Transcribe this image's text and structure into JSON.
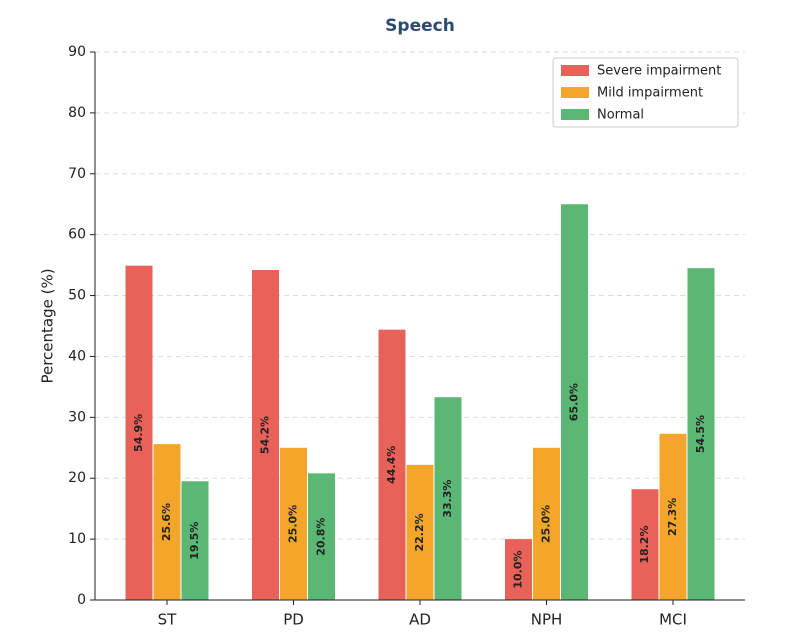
{
  "chart_data": {
    "type": "bar",
    "title": "Speech",
    "y_label": "Percentage (%)",
    "categories": [
      "ST",
      "PD",
      "AD",
      "NPH",
      "MCI"
    ],
    "series": [
      {
        "name": "Severe impairment",
        "color": "#e8625a",
        "values": [
          54.9,
          54.2,
          44.4,
          10.0,
          18.2
        ],
        "value_labels": [
          "54.9%",
          "54.2%",
          "44.4%",
          "10.0%",
          "18.2%"
        ]
      },
      {
        "name": "Mild impairment",
        "color": "#f4a62a",
        "values": [
          25.6,
          25.0,
          22.2,
          25.0,
          27.3
        ],
        "value_labels": [
          "25.6%",
          "25.0%",
          "22.2%",
          "25.0%",
          "27.3%"
        ]
      },
      {
        "name": "Normal",
        "color": "#5bb774",
        "values": [
          19.5,
          20.8,
          33.3,
          65.0,
          54.5
        ],
        "value_labels": [
          "19.5%",
          "20.8%",
          "33.3%",
          "65.0%",
          "54.5%"
        ]
      }
    ],
    "ylim": [
      0,
      90
    ],
    "yticks": [
      0,
      10,
      20,
      30,
      40,
      50,
      60,
      70,
      80,
      90
    ],
    "grid": true,
    "legend": "upper right"
  }
}
